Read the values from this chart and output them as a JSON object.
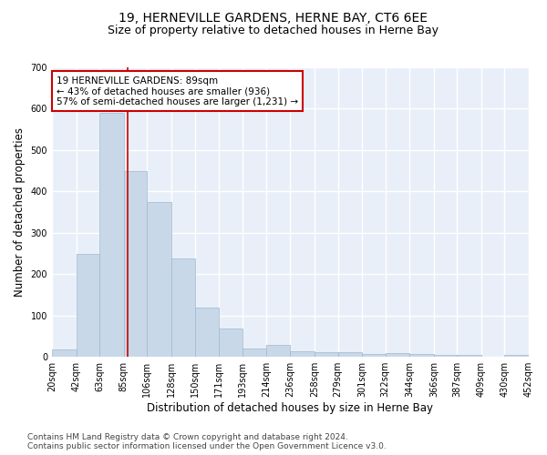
{
  "title": "19, HERNEVILLE GARDENS, HERNE BAY, CT6 6EE",
  "subtitle": "Size of property relative to detached houses in Herne Bay",
  "xlabel": "Distribution of detached houses by size in Herne Bay",
  "ylabel": "Number of detached properties",
  "bar_color": "#c8d8e8",
  "bar_edge_color": "#a0b8cc",
  "background_color": "#ffffff",
  "plot_bg_color": "#e8eff8",
  "grid_color": "#ffffff",
  "annotation_text": "19 HERNEVILLE GARDENS: 89sqm\n← 43% of detached houses are smaller (936)\n57% of semi-detached houses are larger (1,231) →",
  "annotation_box_color": "#ffffff",
  "annotation_box_edge": "#cc0000",
  "vline_x": 89,
  "vline_color": "#cc0000",
  "bin_edges": [
    20,
    42,
    63,
    85,
    106,
    128,
    150,
    171,
    193,
    214,
    236,
    258,
    279,
    301,
    322,
    344,
    366,
    387,
    409,
    430,
    452
  ],
  "bin_labels": [
    "20sqm",
    "42sqm",
    "63sqm",
    "85sqm",
    "106sqm",
    "128sqm",
    "150sqm",
    "171sqm",
    "193sqm",
    "214sqm",
    "236sqm",
    "258sqm",
    "279sqm",
    "301sqm",
    "322sqm",
    "344sqm",
    "366sqm",
    "387sqm",
    "409sqm",
    "430sqm",
    "452sqm"
  ],
  "bar_heights": [
    17,
    249,
    590,
    449,
    375,
    237,
    120,
    68,
    21,
    29,
    14,
    11,
    11,
    8,
    9,
    8,
    5,
    4,
    1,
    4
  ],
  "ylim": [
    0,
    700
  ],
  "yticks": [
    0,
    100,
    200,
    300,
    400,
    500,
    600,
    700
  ],
  "footer_text": "Contains HM Land Registry data © Crown copyright and database right 2024.\nContains public sector information licensed under the Open Government Licence v3.0.",
  "title_fontsize": 10,
  "subtitle_fontsize": 9,
  "axis_label_fontsize": 8.5,
  "tick_fontsize": 7,
  "annotation_fontsize": 7.5,
  "footer_fontsize": 6.5
}
